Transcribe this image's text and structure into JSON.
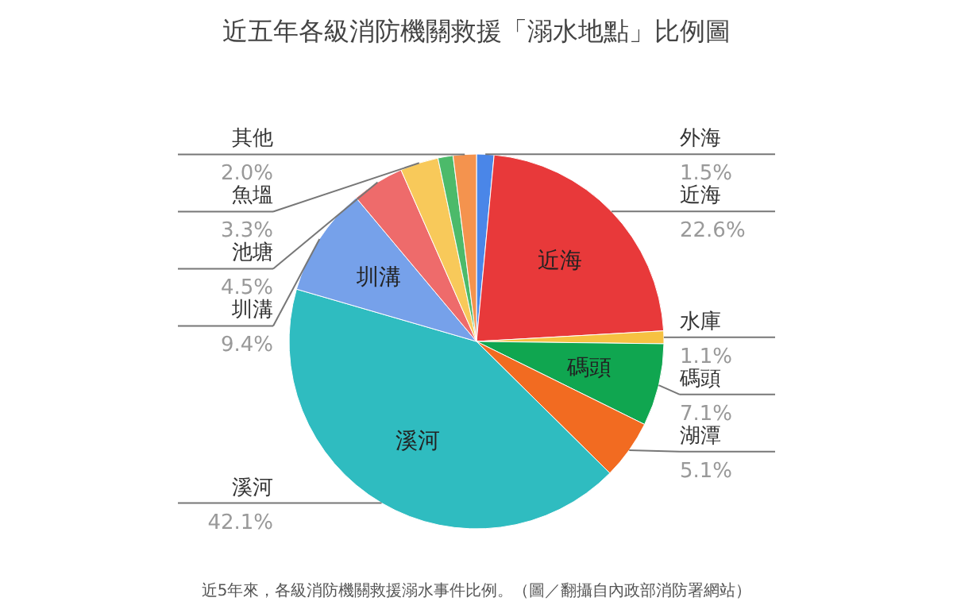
{
  "chart_data": {
    "type": "pie",
    "title": "近五年各級消防機關救援「溺水地點」比例圖",
    "categories": [
      "外海",
      "近海",
      "水庫",
      "碼頭",
      "湖潭",
      "溪河",
      "圳溝",
      "池塘",
      "魚塭",
      null,
      "其他"
    ],
    "values": [
      1.5,
      22.6,
      1.1,
      7.1,
      5.1,
      42.1,
      9.4,
      4.5,
      3.3,
      1.3,
      2.0
    ],
    "value_labels": [
      "1.5%",
      "22.6%",
      "1.1%",
      "7.1%",
      "5.1%",
      "42.1%",
      "9.4%",
      "4.5%",
      "3.3%",
      null,
      "2.0%"
    ],
    "colors": [
      "#4a86e8",
      "#e8393a",
      "#f6c142",
      "#10a650",
      "#f26b21",
      "#2fbcc0",
      "#76a1ea",
      "#ee6b6b",
      "#f8c95a",
      "#4cba6a",
      "#f4934e"
    ],
    "annotations": [
      "近5年來，各級消防機關救援溺水事件比例。（圖／翻攝自內政部消防署網站）"
    ]
  }
}
